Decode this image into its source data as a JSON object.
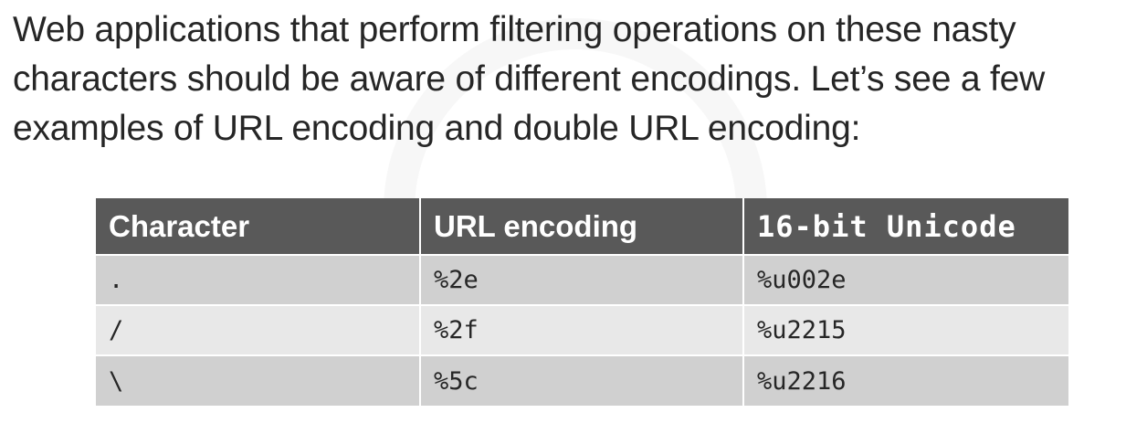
{
  "paragraph": {
    "lines": [
      "Web applications that perform filtering operations on these nasty",
      "characters should be aware of different encodings. Let’s see a few",
      "examples of URL encoding and double URL encoding:"
    ]
  },
  "table": {
    "headers": [
      "Character",
      "URL encoding",
      "16-bit Unicode"
    ],
    "rows": [
      [
        ".",
        "%2e",
        "%u002e"
      ],
      [
        "/",
        "%2f",
        "%u2215"
      ],
      [
        "\\",
        "%5c",
        "%u2216"
      ]
    ]
  },
  "colors": {
    "header_bg": "#595959",
    "row_odd_bg": "#d0d0d0",
    "row_even_bg": "#e8e8e8",
    "text": "#262626"
  }
}
